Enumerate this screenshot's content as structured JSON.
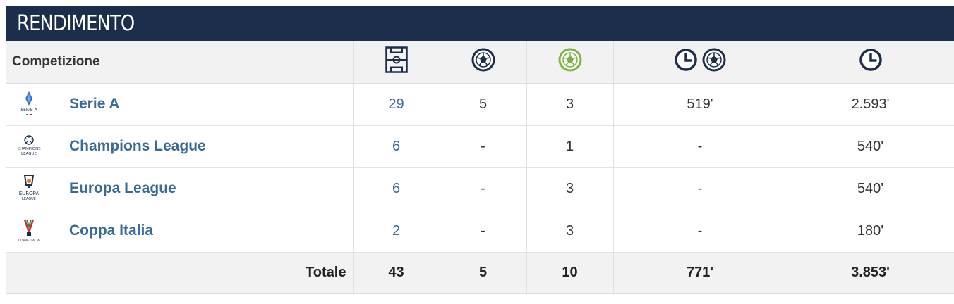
{
  "header": {
    "title": "RENDIMENTO"
  },
  "columns": {
    "competition": "Competizione",
    "icons": [
      "pitch-icon",
      "ball-icon",
      "green-ball-icon",
      "clock-ball-icon",
      "clock-icon"
    ]
  },
  "rows": [
    {
      "competition": "Serie A",
      "logo": "serie-a-logo",
      "logo_caption": "SERIE A",
      "appearances": "29",
      "goals": "5",
      "col3": "3",
      "minutes_per_goal": "519'",
      "minutes": "2.593'"
    },
    {
      "competition": "Champions League",
      "logo": "champions-league-logo",
      "logo_caption": "CHAMPIONS LEAGUE",
      "appearances": "6",
      "goals": "-",
      "col3": "1",
      "minutes_per_goal": "-",
      "minutes": "540'"
    },
    {
      "competition": "Europa League",
      "logo": "europa-league-logo",
      "logo_caption": "EUROPA LEAGUE",
      "appearances": "6",
      "goals": "-",
      "col3": "3",
      "minutes_per_goal": "-",
      "minutes": "540'"
    },
    {
      "competition": "Coppa Italia",
      "logo": "coppa-italia-logo",
      "logo_caption": "COPPA ITALIA",
      "appearances": "2",
      "goals": "-",
      "col3": "3",
      "minutes_per_goal": "-",
      "minutes": "180'"
    }
  ],
  "totals": {
    "label": "Totale",
    "appearances": "43",
    "goals": "5",
    "col3": "10",
    "minutes_per_goal": "771'",
    "minutes": "3.853'"
  },
  "colors": {
    "header_bg": "#1d2e4c",
    "link": "#3a6b96",
    "green_ball": "#7cb342",
    "row_alt_bg": "#f2f2f2"
  }
}
